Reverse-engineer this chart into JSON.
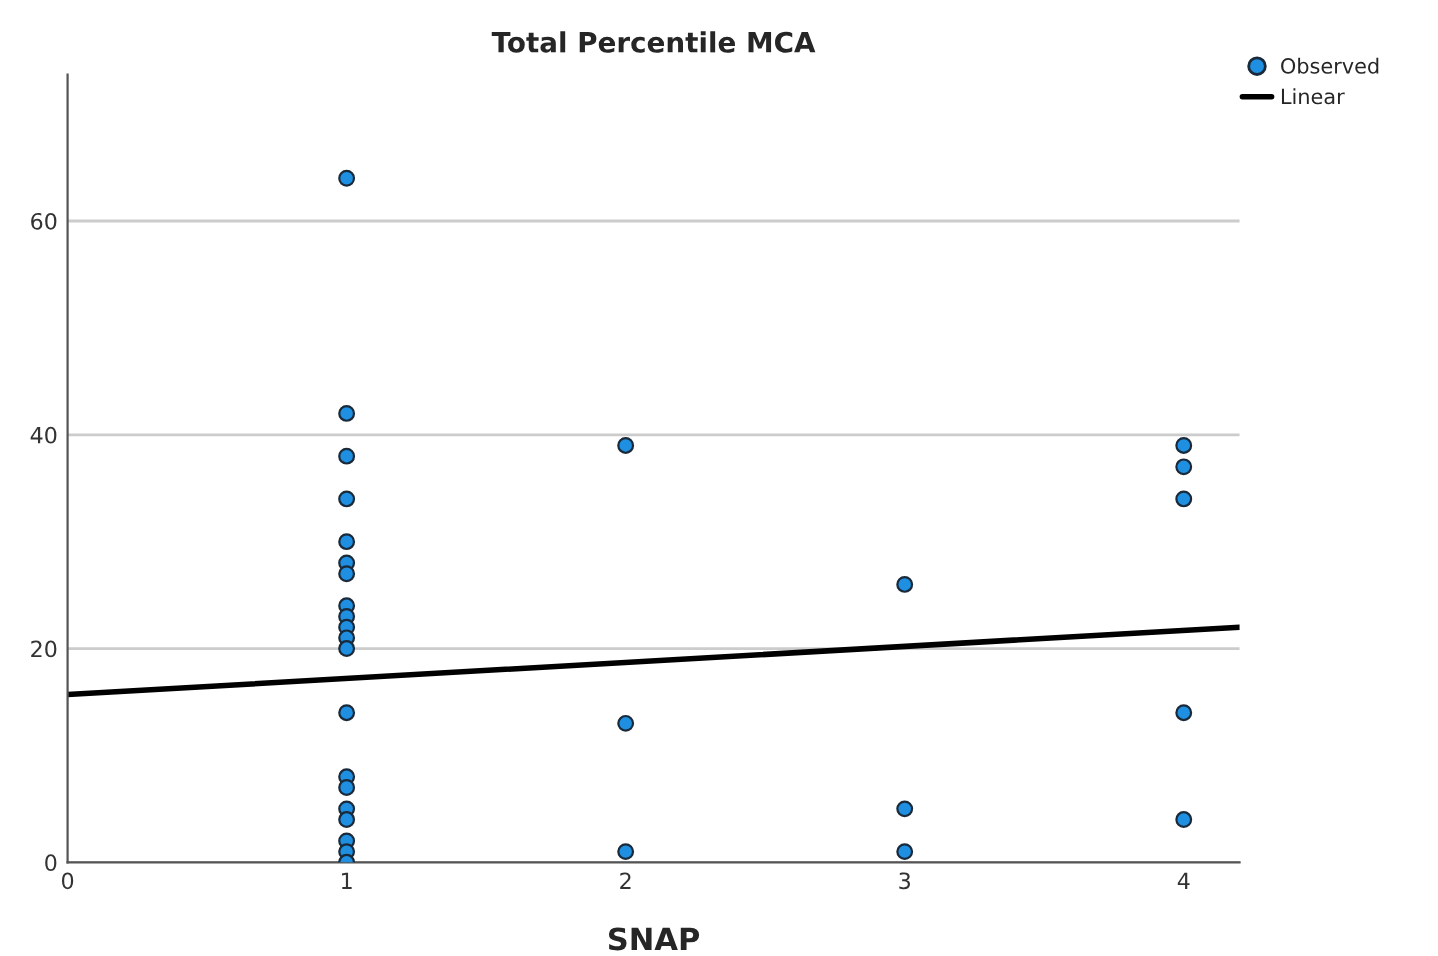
{
  "chart_data": {
    "type": "scatter",
    "title": "Total Percentile MCA",
    "xlabel": "SNAP",
    "xlim": [
      0,
      4.2
    ],
    "xticks": [
      0,
      1,
      2,
      3,
      4
    ],
    "ylim": [
      0,
      73.7
    ],
    "yticks": [
      0,
      20,
      40,
      60
    ],
    "grid": "y",
    "legend": "top right",
    "series": [
      {
        "name": "Observed",
        "marker": "circle",
        "color": "#1e8fe1",
        "x": [
          1,
          1,
          1,
          1,
          1,
          1,
          1,
          1,
          1,
          1,
          1,
          1,
          1,
          1,
          1,
          1,
          1,
          1,
          1,
          1,
          2,
          2,
          2,
          3,
          3,
          3,
          4,
          4,
          4,
          4,
          4
        ],
        "values": [
          64,
          42,
          38,
          34,
          30,
          28,
          27,
          24,
          23,
          22,
          21,
          20,
          14,
          8,
          7,
          5,
          4,
          2,
          1,
          0,
          39,
          13,
          1,
          26,
          5,
          1,
          39,
          37,
          34,
          14,
          4
        ]
      },
      {
        "name": "Linear",
        "type": "line",
        "color": "#000000",
        "x": [
          0,
          4.2
        ],
        "values": [
          15.7,
          22.0
        ]
      }
    ]
  }
}
